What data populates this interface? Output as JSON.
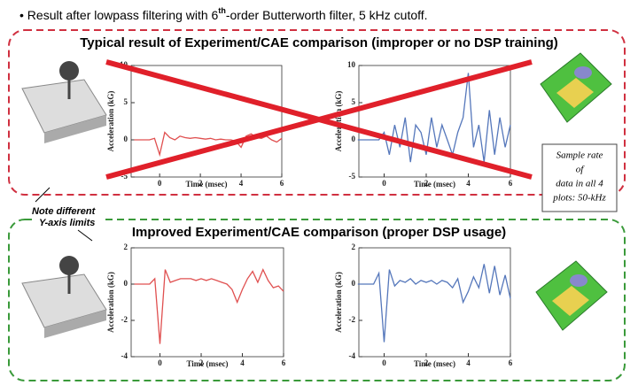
{
  "slide": {
    "bullet": [
      "Result after lowpass filtering with 6",
      "th",
      "-order Butterworth filter, 5 kHz cutoff."
    ],
    "top_title": "Typical result of Experiment/CAE comparison (improper or no DSP training)",
    "bottom_title": "Improved Experiment/CAE comparison (proper DSP usage)",
    "axis_note": [
      "Note different",
      "Y-axis limits"
    ],
    "sample_note": [
      "Sample rate",
      "of",
      "data in all 4",
      "plots: 50-kHz"
    ]
  },
  "chart_data": [
    {
      "type": "line",
      "xlabel": "Time (msec)",
      "ylabel": "Acceleration (kG)",
      "color": "#e05050",
      "x": [
        -1.25,
        -1,
        -0.75,
        -0.5,
        -0.25,
        0,
        0.25,
        0.5,
        0.75,
        1,
        1.25,
        1.5,
        1.75,
        2,
        2.25,
        2.5,
        2.75,
        3,
        3.25,
        3.5,
        3.75,
        4,
        4.25,
        4.5,
        4.75,
        5,
        5.25,
        5.5,
        5.75,
        6
      ],
      "values": [
        0,
        0,
        0,
        0,
        0.2,
        -2,
        1,
        0.3,
        0,
        0.5,
        0.3,
        0.2,
        0.3,
        0.2,
        0.1,
        0.2,
        0,
        0.1,
        0,
        0,
        -0.2,
        -1,
        0.5,
        0.8,
        0.3,
        0.2,
        0.5,
        0,
        -0.3,
        0.2
      ],
      "xlim": [
        -1.4,
        6
      ],
      "ylim": [
        -5,
        10
      ],
      "xticks": [
        0,
        2,
        4,
        6
      ],
      "yticks": [
        -5,
        0,
        5,
        10
      ]
    },
    {
      "type": "line",
      "xlabel": "Time (msec)",
      "ylabel": "Acceleration (kG)",
      "color": "#5577bb",
      "x": [
        -1.25,
        -1,
        -0.75,
        -0.5,
        -0.25,
        0,
        0.25,
        0.5,
        0.75,
        1,
        1.25,
        1.5,
        1.75,
        2,
        2.25,
        2.5,
        2.75,
        3,
        3.25,
        3.5,
        3.75,
        4,
        4.25,
        4.5,
        4.75,
        5,
        5.25,
        5.5,
        5.75,
        6
      ],
      "values": [
        0,
        0,
        0,
        0,
        0,
        1,
        -2,
        2,
        -1,
        3,
        -3,
        2,
        1,
        -2,
        3,
        -1,
        2,
        0,
        -2,
        1,
        3,
        9,
        -1,
        2,
        -3,
        4,
        -2,
        3,
        -1,
        2
      ],
      "xlim": [
        -1.2,
        6
      ],
      "ylim": [
        -5,
        10
      ],
      "xticks": [
        0,
        2,
        4,
        6
      ],
      "yticks": [
        -5,
        0,
        5,
        10
      ]
    },
    {
      "type": "line",
      "xlabel": "Time (msec)",
      "ylabel": "Acceleration (kG)",
      "color": "#e05050",
      "x": [
        -1.25,
        -1,
        -0.75,
        -0.5,
        -0.25,
        0,
        0.25,
        0.5,
        0.75,
        1,
        1.25,
        1.5,
        1.75,
        2,
        2.25,
        2.5,
        2.75,
        3,
        3.25,
        3.5,
        3.75,
        4,
        4.25,
        4.5,
        4.75,
        5,
        5.25,
        5.5,
        5.75,
        6
      ],
      "values": [
        0,
        0,
        0,
        0,
        0.3,
        -3.3,
        0.8,
        0.1,
        0.2,
        0.3,
        0.3,
        0.3,
        0.2,
        0.3,
        0.2,
        0.3,
        0.2,
        0.1,
        0,
        -0.3,
        -1,
        -0.3,
        0.3,
        0.7,
        0.1,
        0.8,
        0.2,
        -0.2,
        -0.1,
        -0.4
      ],
      "xlim": [
        -1.4,
        6
      ],
      "ylim": [
        -4,
        2
      ],
      "xticks": [
        0,
        2,
        4,
        6
      ],
      "yticks": [
        -4,
        -2,
        0,
        2
      ]
    },
    {
      "type": "line",
      "xlabel": "Time (msec)",
      "ylabel": "Acceleration (kG)",
      "color": "#5577bb",
      "x": [
        -1.25,
        -1,
        -0.75,
        -0.5,
        -0.25,
        0,
        0.25,
        0.5,
        0.75,
        1,
        1.25,
        1.5,
        1.75,
        2,
        2.25,
        2.5,
        2.75,
        3,
        3.25,
        3.5,
        3.75,
        4,
        4.25,
        4.5,
        4.75,
        5,
        5.25,
        5.5,
        5.75,
        6
      ],
      "values": [
        0,
        0,
        0,
        0,
        0.6,
        -3.2,
        0.8,
        -0.1,
        0.2,
        0.1,
        0.3,
        0,
        0.2,
        0.1,
        0.2,
        0,
        0.2,
        0.1,
        -0.2,
        0.3,
        -1,
        -0.4,
        0.4,
        -0.2,
        1.1,
        -0.5,
        1,
        -0.6,
        0.5,
        -0.8
      ],
      "xlim": [
        -1.2,
        6
      ],
      "ylim": [
        -4,
        2
      ],
      "xticks": [
        0,
        2,
        4,
        6
      ],
      "yticks": [
        -4,
        -2,
        0,
        2
      ]
    }
  ]
}
